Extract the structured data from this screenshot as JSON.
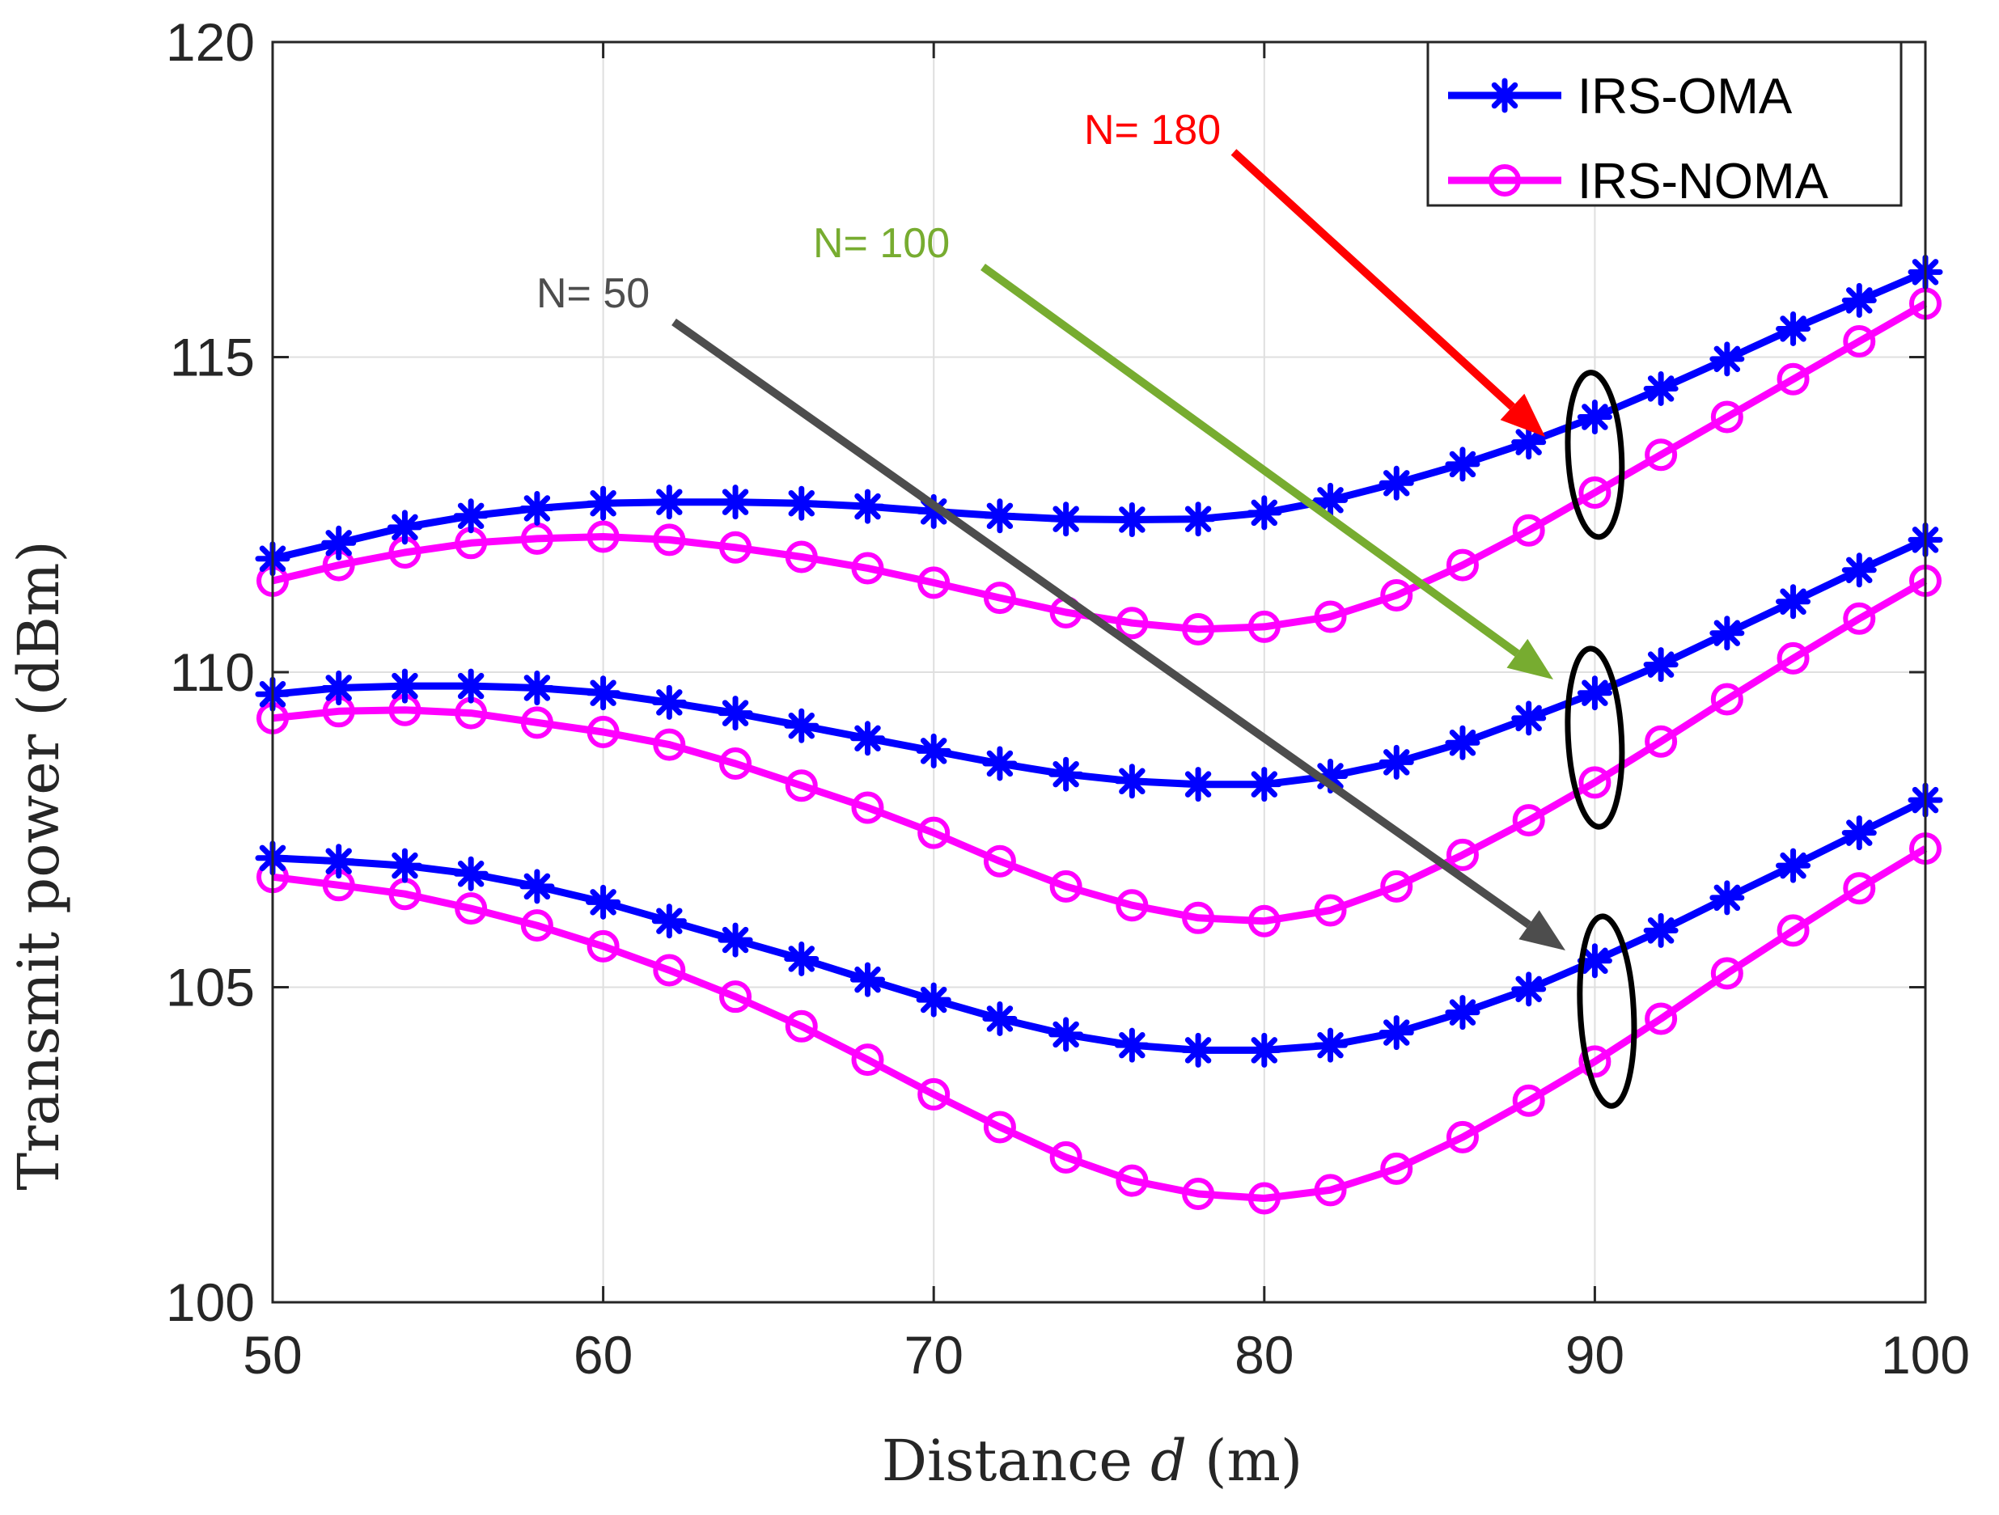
{
  "chart_data": {
    "type": "line",
    "title": "",
    "xlabel_prefix": "Distance ",
    "xlabel_var": "d",
    "xlabel_suffix": " (m)",
    "ylabel": "Transmit power (dBm)",
    "xlim": [
      50,
      100
    ],
    "ylim": [
      100,
      120
    ],
    "xticks": [
      50,
      60,
      70,
      80,
      90,
      100
    ],
    "yticks": [
      100,
      105,
      110,
      115,
      120
    ],
    "grid": true,
    "legend_position": "top-right",
    "x": [
      50,
      52,
      54,
      56,
      58,
      60,
      62,
      64,
      66,
      68,
      70,
      72,
      74,
      76,
      78,
      80,
      82,
      84,
      86,
      88,
      90,
      92,
      94,
      96,
      98,
      100
    ],
    "groups": [
      {
        "label": "N= 180",
        "label_color": "#ff0000",
        "IRS-OMA": [
          111.8,
          112.05,
          112.3,
          112.48,
          112.6,
          112.68,
          112.7,
          112.7,
          112.68,
          112.63,
          112.55,
          112.48,
          112.43,
          112.42,
          112.43,
          112.53,
          112.73,
          113.0,
          113.3,
          113.65,
          114.05,
          114.5,
          114.97,
          115.45,
          115.9,
          116.35
        ],
        "IRS-NOMA": [
          111.45,
          111.7,
          111.9,
          112.05,
          112.12,
          112.15,
          112.1,
          111.98,
          111.83,
          111.65,
          111.42,
          111.18,
          110.95,
          110.78,
          110.68,
          110.72,
          110.88,
          111.22,
          111.7,
          112.25,
          112.85,
          113.45,
          114.05,
          114.65,
          115.25,
          115.85
        ]
      },
      {
        "label": "N= 100",
        "label_color": "#77ac30",
        "IRS-OMA": [
          109.65,
          109.75,
          109.78,
          109.78,
          109.75,
          109.67,
          109.52,
          109.35,
          109.15,
          108.95,
          108.75,
          108.55,
          108.38,
          108.27,
          108.22,
          108.22,
          108.35,
          108.57,
          108.88,
          109.27,
          109.67,
          110.12,
          110.62,
          111.12,
          111.62,
          112.1
        ],
        "IRS-NOMA": [
          109.27,
          109.38,
          109.4,
          109.35,
          109.2,
          109.05,
          108.85,
          108.55,
          108.2,
          107.85,
          107.45,
          107.0,
          106.6,
          106.3,
          106.1,
          106.05,
          106.22,
          106.6,
          107.1,
          107.65,
          108.25,
          108.9,
          109.57,
          110.22,
          110.85,
          111.45
        ]
      },
      {
        "label": "N= 50",
        "label_color": "#4d4d4d",
        "IRS-OMA": [
          107.05,
          107.0,
          106.93,
          106.8,
          106.6,
          106.35,
          106.05,
          105.75,
          105.45,
          105.12,
          104.8,
          104.5,
          104.25,
          104.08,
          104.0,
          104.0,
          104.08,
          104.28,
          104.6,
          104.97,
          105.42,
          105.9,
          106.42,
          106.93,
          107.45,
          107.97
        ],
        "IRS-NOMA": [
          106.75,
          106.62,
          106.48,
          106.25,
          105.98,
          105.65,
          105.27,
          104.85,
          104.38,
          103.85,
          103.3,
          102.78,
          102.3,
          101.93,
          101.72,
          101.65,
          101.78,
          102.12,
          102.62,
          103.2,
          103.82,
          104.5,
          105.22,
          105.9,
          106.57,
          107.2
        ]
      }
    ],
    "series": [
      {
        "name": "IRS-OMA",
        "color": "#0000ff",
        "marker": "asterisk"
      },
      {
        "name": "IRS-NOMA",
        "color": "#ff00ff",
        "marker": "circle"
      }
    ]
  }
}
